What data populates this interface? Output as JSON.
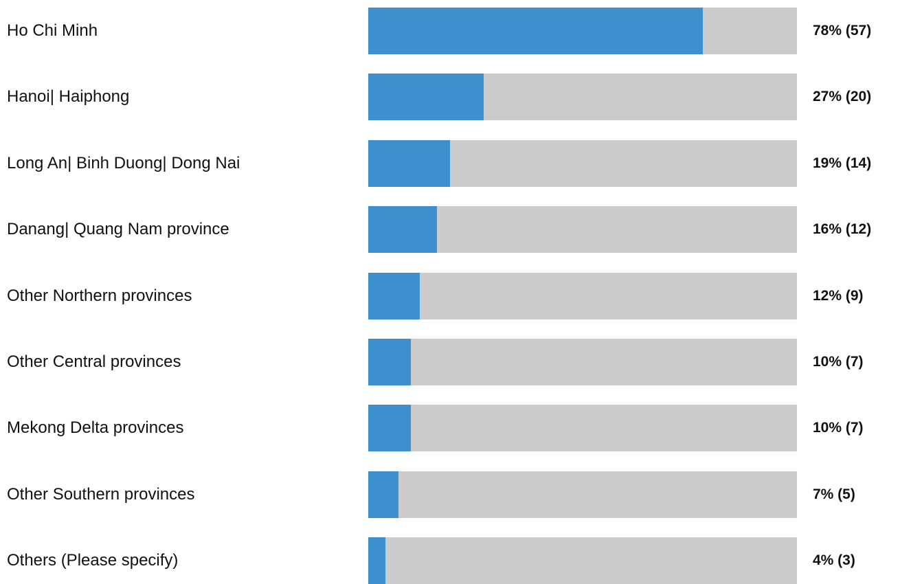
{
  "colors": {
    "bar_fill": "#3d8fce",
    "bar_track": "#cbcbcb",
    "text": "#111111",
    "background": "#ffffff"
  },
  "chart_data": {
    "type": "bar",
    "orientation": "horizontal",
    "xlim": [
      0,
      100
    ],
    "categories": [
      "Ho Chi Minh",
      "Hanoi| Haiphong",
      "Long An| Binh Duong| Dong Nai",
      "Danang| Quang Nam province",
      "Other Northern provinces",
      "Other Central provinces",
      "Mekong Delta provinces",
      "Other Southern provinces",
      "Others (Please specify)"
    ],
    "values": [
      78,
      27,
      19,
      16,
      12,
      10,
      10,
      7,
      4
    ],
    "counts": [
      57,
      20,
      14,
      12,
      9,
      7,
      7,
      5,
      3
    ],
    "data_labels": [
      "78% (57)",
      "27% (20)",
      "19% (14)",
      "16% (12)",
      "12% (9)",
      "10% (7)",
      "10% (7)",
      "7% (5)",
      "4% (3)"
    ]
  }
}
